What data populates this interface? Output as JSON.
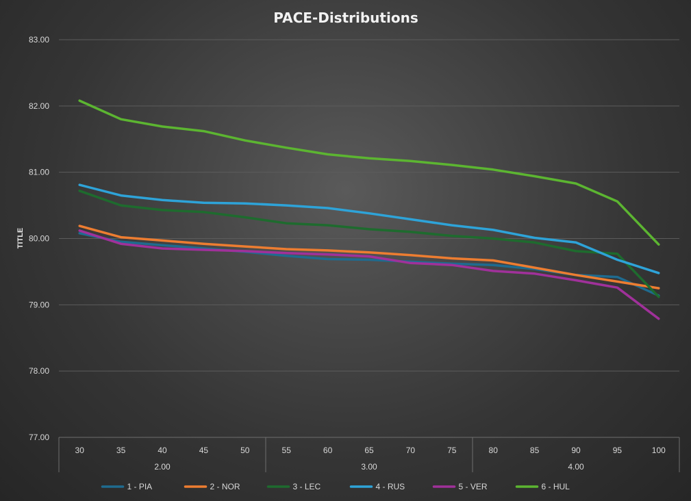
{
  "chart_data": {
    "type": "line",
    "title": "PACE-Distributions",
    "ylabel": "TITLE",
    "xlabel": "",
    "ylim": [
      77.0,
      83.0
    ],
    "y_ticks": [
      "77.00",
      "78.00",
      "79.00",
      "80.00",
      "81.00",
      "82.00",
      "83.00"
    ],
    "grid": true,
    "legend_position": "bottom",
    "categories": [
      "30",
      "35",
      "40",
      "45",
      "50",
      "55",
      "60",
      "65",
      "70",
      "75",
      "80",
      "85",
      "90",
      "95",
      "100"
    ],
    "groups": [
      {
        "label": "2.00",
        "count": 5
      },
      {
        "label": "3.00",
        "count": 5
      },
      {
        "label": "4.00",
        "count": 5
      }
    ],
    "series": [
      {
        "name": "1 - PIA",
        "color": "#1f6b8f",
        "values": [
          80.08,
          79.95,
          79.9,
          79.85,
          79.8,
          79.74,
          79.69,
          79.68,
          79.65,
          79.62,
          79.6,
          79.54,
          79.45,
          79.42,
          79.14
        ]
      },
      {
        "name": "2 - NOR",
        "color": "#ed7d31",
        "values": [
          80.19,
          80.02,
          79.97,
          79.92,
          79.88,
          79.84,
          79.82,
          79.79,
          79.75,
          79.7,
          79.67,
          79.56,
          79.45,
          79.35,
          79.25
        ]
      },
      {
        "name": "3 - LEC",
        "color": "#1e6b2e",
        "values": [
          80.72,
          80.5,
          80.43,
          80.4,
          80.32,
          80.23,
          80.2,
          80.14,
          80.1,
          80.04,
          80.0,
          79.94,
          79.81,
          79.77,
          79.12
        ]
      },
      {
        "name": "4 - RUS",
        "color": "#2ea3d8",
        "values": [
          80.81,
          80.65,
          80.58,
          80.54,
          80.53,
          80.5,
          80.46,
          80.38,
          80.29,
          80.2,
          80.13,
          80.01,
          79.94,
          79.68,
          79.48
        ]
      },
      {
        "name": "5 - VER",
        "color": "#a0319a",
        "values": [
          80.12,
          79.92,
          79.85,
          79.83,
          79.81,
          79.78,
          79.76,
          79.73,
          79.63,
          79.6,
          79.51,
          79.47,
          79.37,
          79.26,
          78.79
        ]
      },
      {
        "name": "6 - HUL",
        "color": "#5cb531",
        "values": [
          82.08,
          81.8,
          81.69,
          81.62,
          81.48,
          81.37,
          81.27,
          81.21,
          81.17,
          81.11,
          81.04,
          80.94,
          80.83,
          80.56,
          79.91
        ]
      }
    ]
  }
}
